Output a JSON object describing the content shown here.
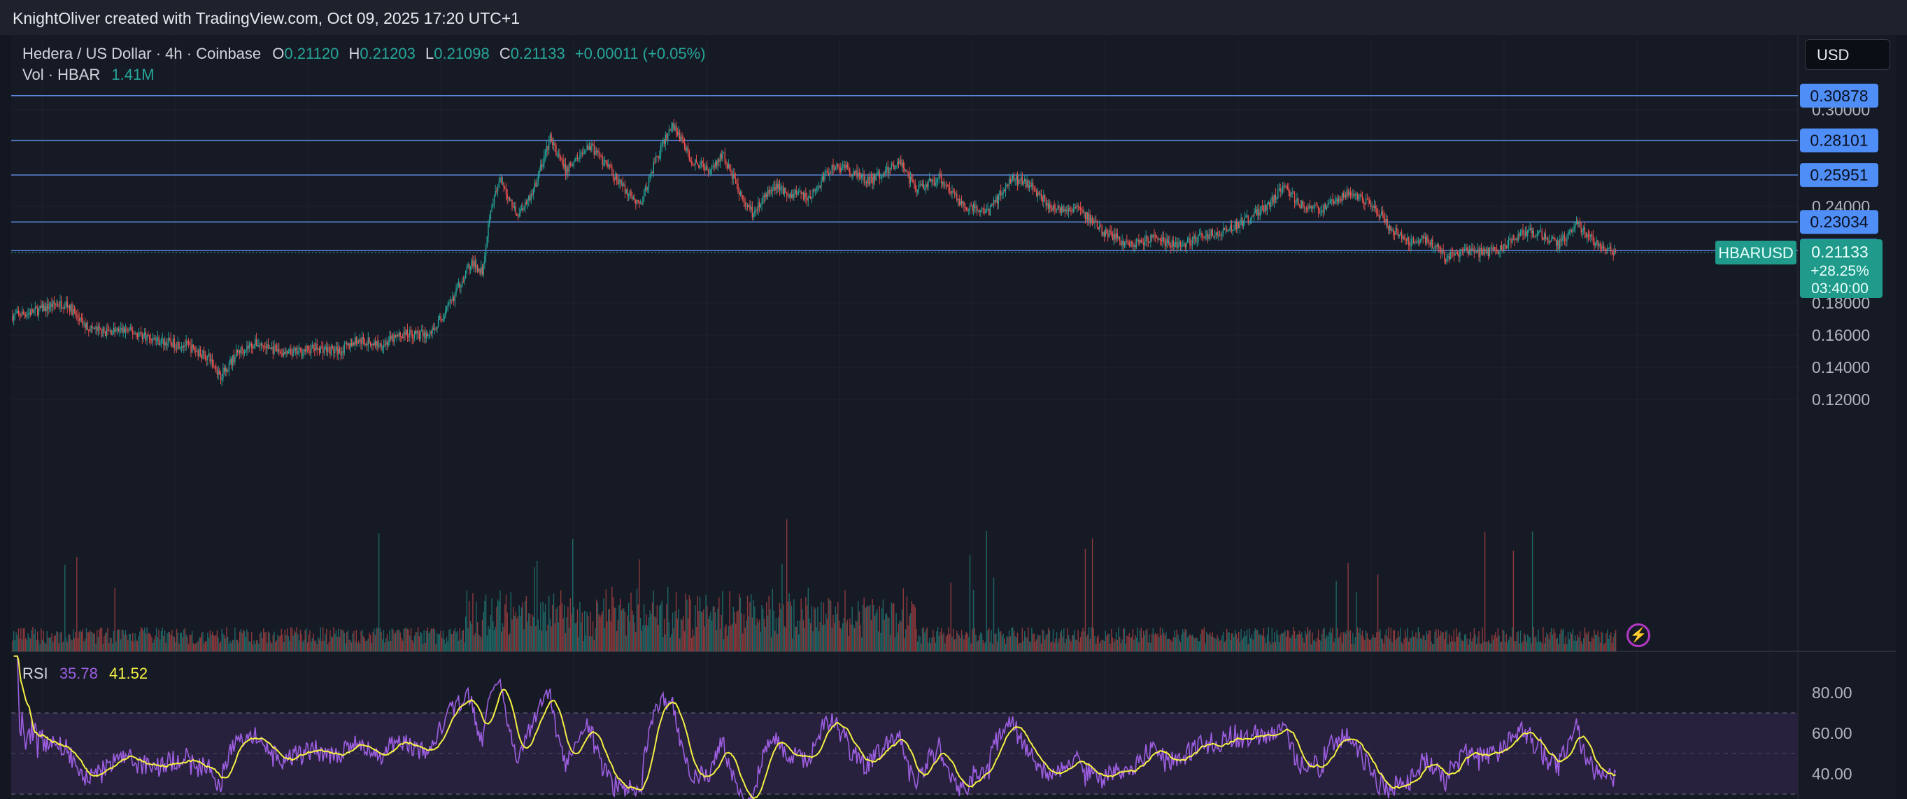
{
  "attribution": "KnightOliver created with TradingView.com, Oct 09, 2025 17:20 UTC+1",
  "legend": {
    "symbol": "Hedera / US Dollar · 4h · Coinbase",
    "o_label": "O",
    "o": "0.21120",
    "h_label": "H",
    "h": "0.21203",
    "l_label": "L",
    "l": "0.21098",
    "c_label": "C",
    "c": "0.21133",
    "change": "+0.00011 (+0.05%)",
    "vol_label": "Vol · HBAR",
    "vol_value": "1.41M"
  },
  "currency_button": "USD",
  "rsi_legend": {
    "label": "RSI",
    "value": "35.78",
    "ma_value": "41.52"
  },
  "colors": {
    "up": "#26a69a",
    "down": "#ef5350",
    "level": "#5b86d9",
    "level_badge": "#4f8ef7",
    "rsi": "#9d5ee0",
    "rsi_ma": "#f5f044",
    "price_badge": "#1f9a8b",
    "rsi_band": "#2a2342"
  },
  "chart_data": [
    {
      "type": "candlestick",
      "title": "Hedera / US Dollar · 4h · Coinbase",
      "symbol_tag": "HBARUSD",
      "price_axis_ticks": [
        "0.30000",
        "0.24000",
        "0.18000",
        "0.16000",
        "0.14000",
        "0.12000"
      ],
      "ylim": [
        0.11,
        0.315
      ],
      "horizontal_levels": [
        "0.30878",
        "0.28101",
        "0.25951",
        "0.23034",
        "0.21250"
      ],
      "last_price": "0.21133",
      "last_change_pct": "+28.25%",
      "countdown": "03:40:00",
      "close_path": [
        [
          0,
          0.172
        ],
        [
          20,
          0.175
        ],
        [
          35,
          0.179
        ],
        [
          45,
          0.18
        ],
        [
          60,
          0.166
        ],
        [
          75,
          0.162
        ],
        [
          95,
          0.163
        ],
        [
          110,
          0.16
        ],
        [
          125,
          0.156
        ],
        [
          145,
          0.154
        ],
        [
          165,
          0.146
        ],
        [
          175,
          0.135
        ],
        [
          190,
          0.15
        ],
        [
          205,
          0.155
        ],
        [
          230,
          0.148
        ],
        [
          255,
          0.152
        ],
        [
          275,
          0.15
        ],
        [
          290,
          0.157
        ],
        [
          310,
          0.154
        ],
        [
          330,
          0.161
        ],
        [
          350,
          0.16
        ],
        [
          365,
          0.175
        ],
        [
          385,
          0.205
        ],
        [
          395,
          0.2
        ],
        [
          402,
          0.24
        ],
        [
          410,
          0.255
        ],
        [
          425,
          0.235
        ],
        [
          438,
          0.25
        ],
        [
          452,
          0.282
        ],
        [
          465,
          0.262
        ],
        [
          485,
          0.278
        ],
        [
          500,
          0.265
        ],
        [
          515,
          0.25
        ],
        [
          528,
          0.24
        ],
        [
          540,
          0.268
        ],
        [
          555,
          0.291
        ],
        [
          570,
          0.27
        ],
        [
          585,
          0.262
        ],
        [
          598,
          0.272
        ],
        [
          610,
          0.25
        ],
        [
          622,
          0.236
        ],
        [
          640,
          0.252
        ],
        [
          655,
          0.248
        ],
        [
          670,
          0.245
        ],
        [
          690,
          0.265
        ],
        [
          705,
          0.262
        ],
        [
          720,
          0.255
        ],
        [
          745,
          0.268
        ],
        [
          760,
          0.25
        ],
        [
          780,
          0.258
        ],
        [
          800,
          0.24
        ],
        [
          820,
          0.236
        ],
        [
          840,
          0.258
        ],
        [
          855,
          0.254
        ],
        [
          875,
          0.238
        ],
        [
          895,
          0.24
        ],
        [
          915,
          0.225
        ],
        [
          940,
          0.216
        ],
        [
          960,
          0.22
        ],
        [
          980,
          0.215
        ],
        [
          1000,
          0.221
        ],
        [
          1020,
          0.225
        ],
        [
          1040,
          0.233
        ],
        [
          1055,
          0.24
        ],
        [
          1068,
          0.252
        ],
        [
          1085,
          0.24
        ],
        [
          1100,
          0.238
        ],
        [
          1125,
          0.25
        ],
        [
          1145,
          0.24
        ],
        [
          1160,
          0.225
        ],
        [
          1175,
          0.218
        ],
        [
          1190,
          0.22
        ],
        [
          1205,
          0.208
        ],
        [
          1220,
          0.212
        ],
        [
          1240,
          0.211
        ],
        [
          1255,
          0.215
        ],
        [
          1270,
          0.225
        ],
        [
          1285,
          0.222
        ],
        [
          1300,
          0.216
        ],
        [
          1315,
          0.23
        ],
        [
          1330,
          0.218
        ],
        [
          1340,
          0.213
        ],
        [
          1348,
          0.211
        ]
      ]
    },
    {
      "type": "bar",
      "title": "Vol · HBAR",
      "value": "1.41M"
    },
    {
      "type": "line",
      "title": "RSI",
      "axis_ticks": [
        "80.00",
        "60.00",
        "40.00"
      ],
      "ylim": [
        27,
        98
      ],
      "band": [
        30,
        70
      ],
      "series": [
        {
          "name": "RSI",
          "value": "35.78"
        },
        {
          "name": "MA",
          "value": "41.52"
        }
      ]
    }
  ]
}
